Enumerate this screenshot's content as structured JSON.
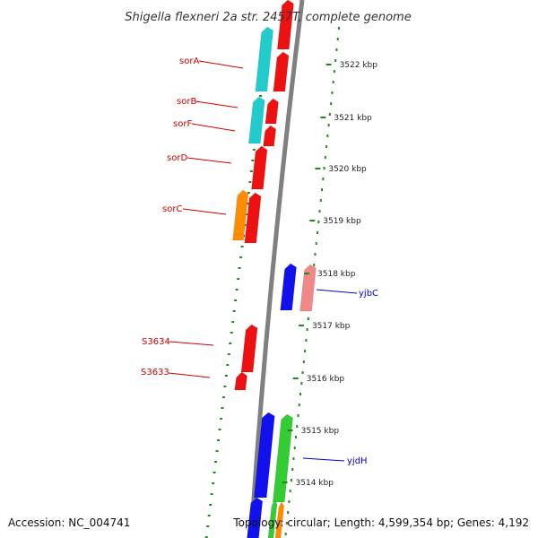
{
  "title": "Shigella flexneri 2a str. 2457T, complete genome",
  "footer": {
    "accession": "Accession: NC_004741",
    "topology": "Topology: circular; Length: 4,599,354 bp; Genes: 4,192"
  },
  "colors": {
    "backbone": "#808080",
    "forward_gene": "#ee1111",
    "reverse_gene": "#1111ee",
    "cyan_gene": "#22cccc",
    "orange_gene": "#ff8c00",
    "pink_gene": "#f08888",
    "green_gene": "#33cc33",
    "gc_dots": "#228822",
    "label_red": "#cc0000",
    "label_blue": "#0000cc"
  },
  "ticks": [
    "3522 kbp",
    "3521 kbp",
    "3520 kbp",
    "3519 kbp",
    "3518 kbp",
    "3517 kbp",
    "3516 kbp",
    "3515 kbp",
    "3514 kbp"
  ],
  "gene_labels": [
    {
      "text": "sorA",
      "side": "left",
      "color": "red"
    },
    {
      "text": "sorB",
      "side": "left",
      "color": "red"
    },
    {
      "text": "sorF",
      "side": "left",
      "color": "red"
    },
    {
      "text": "sorD",
      "side": "left",
      "color": "red"
    },
    {
      "text": "sorC",
      "side": "left",
      "color": "red"
    },
    {
      "text": "yjbC",
      "side": "right",
      "color": "blue"
    },
    {
      "text": "S3634",
      "side": "left",
      "color": "red"
    },
    {
      "text": "S3633",
      "side": "left",
      "color": "red"
    },
    {
      "text": "yjdH",
      "side": "right",
      "color": "blue"
    }
  ]
}
